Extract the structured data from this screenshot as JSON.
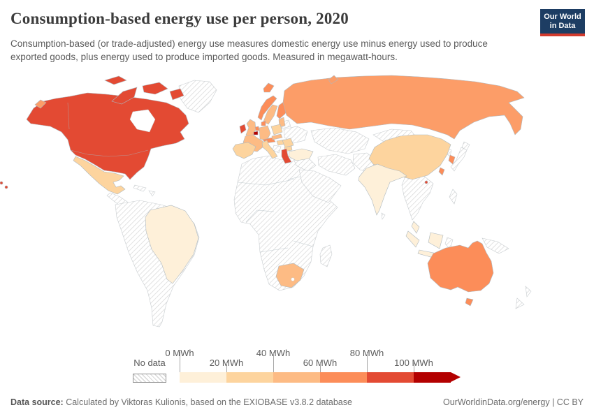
{
  "header": {
    "title": "Consumption-based energy use per person, 2020",
    "subtitle": "Consumption-based (or trade-adjusted) energy use measures domestic energy use minus energy used to produce exported goods, plus energy used to produce imported goods. Measured in megawatt-hours.",
    "logo": {
      "line1": "Our World",
      "line2": "in Data",
      "bg": "#1d3d63",
      "stripe": "#d23a2d"
    }
  },
  "legend": {
    "no_data_label": "No data",
    "unit": "MWh",
    "ticks": [
      {
        "label": "0 MWh",
        "row": 1
      },
      {
        "label": "20 MWh",
        "row": 2
      },
      {
        "label": "40 MWh",
        "row": 1
      },
      {
        "label": "60 MWh",
        "row": 2
      },
      {
        "label": "80 MWh",
        "row": 1
      },
      {
        "label": "100 MWh",
        "row": 2
      }
    ],
    "bands": [
      "#fef0d9",
      "#fdd49e",
      "#fdbb84",
      "#fc8d59",
      "#e34a33",
      "#b30000"
    ]
  },
  "map": {
    "palette": {
      "b1": "#fef0d9",
      "b2": "#fdd49e",
      "b3": "#fdbb84",
      "b4": "#fc8d59",
      "b5": "#e34a33",
      "b6": "#b30000",
      "russia": "#fc9d68",
      "nd": "hatch"
    },
    "countries": {
      "canada_usa": "b5",
      "arctic_islands": "b5",
      "hawaii": "b5",
      "greenland": "nd",
      "mexico": "b2",
      "central_america": "nd",
      "cuba": "nd",
      "hispaniola": "nd",
      "south_america": "nd",
      "brazil": "b1",
      "africa": "nd",
      "south_africa": "b3",
      "madagascar": "nd",
      "iceland": "b4",
      "norway": "b4",
      "sweden": "b3",
      "finland": "b4",
      "denmark": "b4",
      "baltics": "b3",
      "uk": "b3",
      "ireland": "b5",
      "netherlands": "b4",
      "belgium": "b6",
      "germany": "b3",
      "france": "b3",
      "iberia": "b2",
      "italy": "b2",
      "alps": "b4",
      "poland": "b2",
      "czech_slovakia": "b3",
      "hungary": "b2",
      "romania": "b2",
      "bulgaria": "b2",
      "balkans": "nd",
      "greece": "b5",
      "turkey": "b1",
      "ukraine": "nd",
      "belarus": "nd",
      "russia": "russia",
      "russia_wrap": "russia",
      "novaya_zemlya": "russia",
      "svalbard": "nd",
      "central_asia": "nd",
      "levant": "nd",
      "iran": "nd",
      "arabia": "nd",
      "afghanistan_pakistan": "nd",
      "mongolia": "nd",
      "china": "b2",
      "hong_kong": "b5",
      "taiwan": "b4",
      "south_korea": "b4",
      "north_korea": "nd",
      "japan": "nd",
      "india": "b1",
      "sri_lanka": "nd",
      "se_asia_mainland": "nd",
      "malaysia": "b1",
      "sumatra": "b1",
      "java": "b1",
      "borneo": "b1",
      "sulawesi": "nd",
      "philippines": "nd",
      "new_guinea": "nd",
      "australia": "b4",
      "tasmania": "b4",
      "new_zealand_north": "nd",
      "new_zealand_south": "nd"
    }
  },
  "footer": {
    "source_label": "Data source:",
    "source_text": " Calculated by Viktoras Kulionis, based on the EXIOBASE v3.8.2 database",
    "link_text": "OurWorldinData.org/energy | CC BY"
  },
  "chart_data": {
    "type": "choropleth_map",
    "title": "Consumption-based energy use per person, 2020",
    "unit": "MWh",
    "legend_bands": [
      {
        "range": "0-20 MWh",
        "color": "#fef0d9"
      },
      {
        "range": "20-40 MWh",
        "color": "#fdd49e"
      },
      {
        "range": "40-60 MWh",
        "color": "#fdbb84"
      },
      {
        "range": "60-80 MWh",
        "color": "#fc8d59"
      },
      {
        "range": "80-100 MWh",
        "color": "#e34a33"
      },
      {
        "range": "100+ MWh",
        "color": "#b30000"
      },
      {
        "range": "No data",
        "color": "hatched"
      }
    ],
    "countries": {
      "United States": "80-100",
      "Canada": "80-100",
      "Mexico": "20-40",
      "Brazil": "0-20",
      "South America (except Brazil)": "No data",
      "Greenland": "No data",
      "Iceland": "60-80",
      "Norway": "60-80",
      "Sweden": "40-60",
      "Finland": "60-80",
      "Denmark": "60-80",
      "United Kingdom": "40-60",
      "Ireland": "80-100",
      "France": "40-60",
      "Belgium": "100+",
      "Netherlands": "60-80",
      "Germany": "40-60",
      "Spain": "20-40",
      "Portugal": "20-40",
      "Italy": "20-40",
      "Poland": "20-40",
      "Greece": "80-100",
      "Turkey": "0-20",
      "Ukraine": "No data",
      "Russia": "40-60",
      "Central Asia": "No data",
      "Middle East": "No data",
      "Most of Africa": "No data",
      "South Africa": "40-60",
      "China": "20-40",
      "Mongolia": "No data",
      "India": "0-20",
      "South Korea": "60-80",
      "North Korea": "No data",
      "Japan": "No data",
      "Taiwan": "60-80",
      "Indonesia": "0-20",
      "Philippines": "No data",
      "Papua New Guinea": "No data",
      "Australia": "60-80",
      "New Zealand": "No data"
    }
  }
}
